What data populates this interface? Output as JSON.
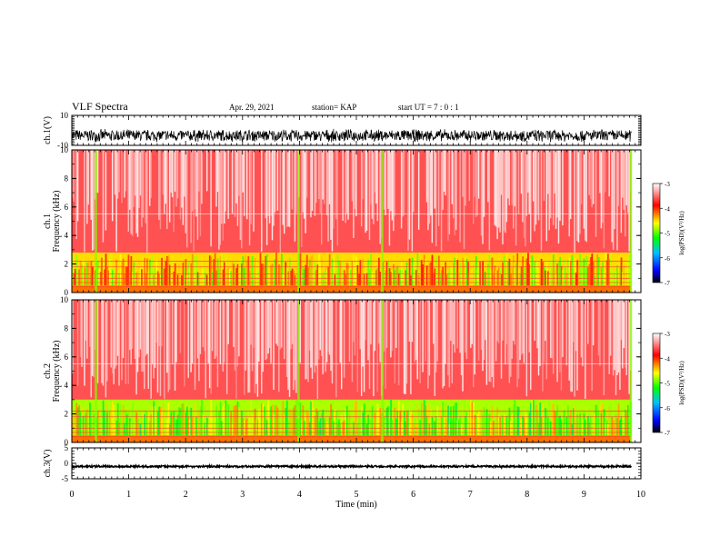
{
  "header": {
    "title": "VLF Spectra",
    "date": "Apr. 29, 2021",
    "station": "station= KAP",
    "start": "start UT = 7 : 0 : 1"
  },
  "chart_data": [
    {
      "type": "line",
      "panel": "ch1_waveform",
      "ylabel": "ch.1(V)",
      "ylim": [
        -10,
        10
      ],
      "yticks": [
        "10",
        "-10"
      ],
      "xlim": [
        0,
        10
      ],
      "description_values": {
        "mean": -3.5,
        "amplitude": 4.5
      },
      "x_end_min": 9.83
    },
    {
      "type": "heatmap",
      "panel": "ch1_spectrum",
      "ylabel": "ch.1 Frequency (kHz)",
      "ylim": [
        0,
        10
      ],
      "yticks": [
        "0",
        "2",
        "4",
        "6",
        "8",
        "10"
      ],
      "xlim": [
        0,
        10
      ],
      "x_end_min": 9.83,
      "colorbar": {
        "label": "log(PSD)(V²/Hz)",
        "range": [
          -7,
          -3
        ],
        "ticks": [
          "-3",
          "-4",
          "-5",
          "-6",
          "-7"
        ]
      },
      "bands": [
        {
          "f_low": 0,
          "f_high": 0.5,
          "level": -4.2
        },
        {
          "f_low": 0.5,
          "f_high": 2.8,
          "level": -4.5
        },
        {
          "f_low": 2.8,
          "f_high": 10,
          "level": -3.6
        }
      ],
      "bright_columns_min": [
        0.42,
        3.98,
        5.45,
        9.82
      ]
    },
    {
      "type": "heatmap",
      "panel": "ch2_spectrum",
      "ylabel": "ch.2 Frequency (kHz)",
      "ylim": [
        0,
        10
      ],
      "yticks": [
        "0",
        "2",
        "4",
        "6",
        "8",
        "10"
      ],
      "xlim": [
        0,
        10
      ],
      "x_end_min": 9.83,
      "colorbar": {
        "label": "log(PSD)(V²/Hz)",
        "range": [
          -7,
          -3
        ],
        "ticks": [
          "-3",
          "-4",
          "-5",
          "-6",
          "-7"
        ]
      },
      "bands": [
        {
          "f_low": 0,
          "f_high": 0.5,
          "level": -4.2
        },
        {
          "f_low": 0.5,
          "f_high": 3.0,
          "level": -4.8
        },
        {
          "f_low": 3.0,
          "f_high": 10,
          "level": -3.6
        }
      ],
      "bright_columns_min": [
        0.42,
        3.98,
        5.45,
        9.82
      ]
    },
    {
      "type": "line",
      "panel": "ch3_waveform",
      "ylabel": "ch.3(V)",
      "ylim": [
        -5,
        5
      ],
      "yticks": [
        "5",
        "0",
        "-5"
      ],
      "xlim": [
        0,
        10
      ],
      "description_values": {
        "mean": -1,
        "amplitude": 0.35
      },
      "x_end_min": 9.83
    }
  ],
  "xaxis": {
    "label": "Time (min)",
    "ticks": [
      "0",
      "1",
      "2",
      "3",
      "4",
      "5",
      "6",
      "7",
      "8",
      "9",
      "10"
    ]
  }
}
